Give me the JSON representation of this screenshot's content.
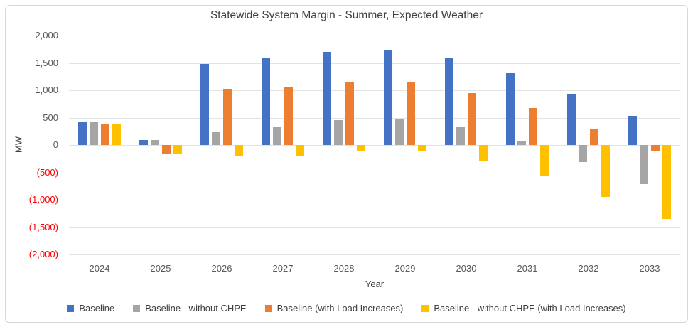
{
  "chart_data": {
    "type": "bar",
    "title": "Statewide System Margin - Summer, Expected Weather",
    "xlabel": "Year",
    "ylabel": "MW",
    "ylim": [
      -2000,
      2000
    ],
    "ytick_interval": 500,
    "y_tick_labels": [
      "2,000",
      "1,500",
      "1,000",
      "500",
      "0",
      "(500)",
      "(1,000)",
      "(1,500)",
      "(2,000)"
    ],
    "grid": true,
    "legend_position": "bottom",
    "negative_label_color": "#ff0000",
    "categories": [
      "2024",
      "2025",
      "2026",
      "2027",
      "2028",
      "2029",
      "2030",
      "2031",
      "2032",
      "2033"
    ],
    "series": [
      {
        "name": "Baseline",
        "color": "#4472C4",
        "values": [
          420,
          90,
          1480,
          1590,
          1700,
          1730,
          1590,
          1310,
          940,
          530
        ]
      },
      {
        "name": "Baseline - without CHPE",
        "color": "#A5A5A5",
        "values": [
          430,
          95,
          230,
          330,
          450,
          470,
          330,
          60,
          -310,
          -720
        ]
      },
      {
        "name": "Baseline (with Load Increases)",
        "color": "#ED7D31",
        "values": [
          385,
          -150,
          1030,
          1060,
          1140,
          1140,
          950,
          670,
          300,
          -120
        ]
      },
      {
        "name": "Baseline - without CHPE (with Load Increases)",
        "color": "#FFC000",
        "values": [
          390,
          -150,
          -210,
          -200,
          -110,
          -120,
          -300,
          -570,
          -950,
          -1350
        ]
      }
    ]
  }
}
